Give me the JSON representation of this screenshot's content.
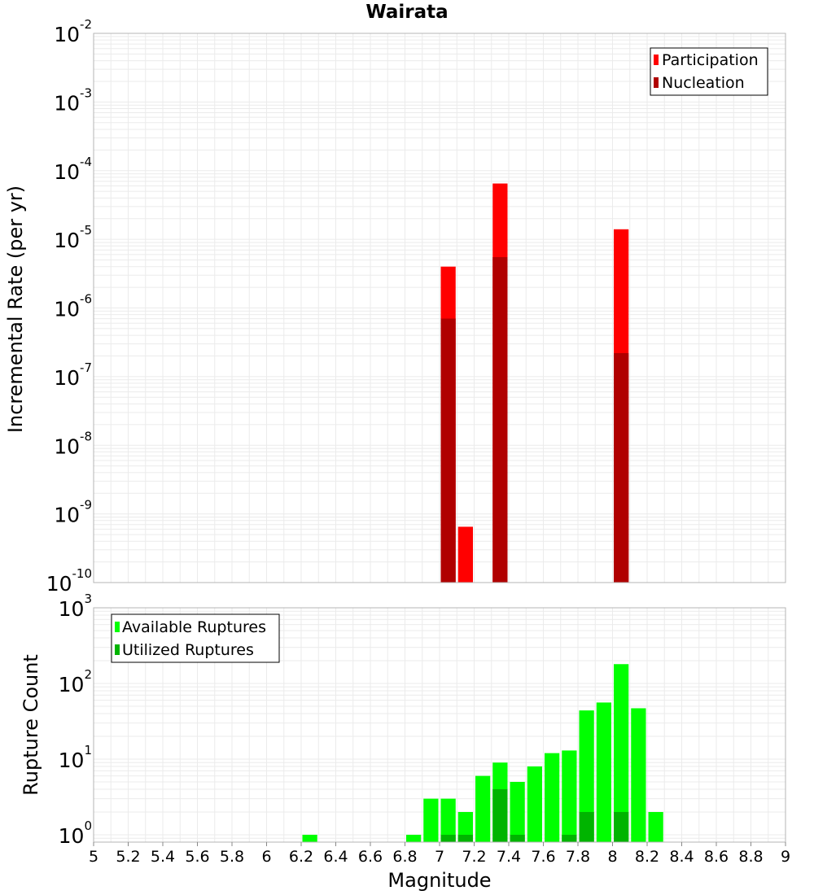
{
  "title": "Wairata",
  "xlabel": "Magnitude",
  "x_ticks": [
    "5",
    "5.2",
    "5.4",
    "5.6",
    "5.8",
    "6",
    "6.2",
    "6.4",
    "6.6",
    "6.8",
    "7",
    "7.2",
    "7.4",
    "7.6",
    "7.8",
    "8",
    "8.2",
    "8.4",
    "8.6",
    "8.8",
    "9"
  ],
  "colors": {
    "participation": "#ff0000",
    "nucleation": "#b00000",
    "available": "#00ff00",
    "utilized": "#00b400",
    "grid": "#ebebeb",
    "frame": "#b4b4b4"
  },
  "chart_data": [
    {
      "type": "bar",
      "title": "Wairata",
      "xlabel": "Magnitude",
      "ylabel": "Incremental Rate (per yr)",
      "xlim": [
        5,
        9
      ],
      "ylim": [
        1e-10,
        0.01
      ],
      "yscale": "log",
      "grid": true,
      "legend_position": "top-right",
      "y_ticks": [
        {
          "base": "10",
          "exp": "-10"
        },
        {
          "base": "10",
          "exp": "-9"
        },
        {
          "base": "10",
          "exp": "-8"
        },
        {
          "base": "10",
          "exp": "-7"
        },
        {
          "base": "10",
          "exp": "-6"
        },
        {
          "base": "10",
          "exp": "-5"
        },
        {
          "base": "10",
          "exp": "-4"
        },
        {
          "base": "10",
          "exp": "-3"
        },
        {
          "base": "10",
          "exp": "-2"
        }
      ],
      "series": [
        {
          "name": "Participation",
          "color": "#ff0000",
          "x": [
            7.05,
            7.15,
            7.35,
            8.05
          ],
          "values": [
            4e-06,
            6.5e-10,
            6.5e-05,
            1.4e-05
          ]
        },
        {
          "name": "Nucleation",
          "color": "#b00000",
          "x": [
            7.05,
            7.35,
            8.05
          ],
          "values": [
            7e-07,
            5.5e-06,
            2.2e-07
          ]
        }
      ]
    },
    {
      "type": "bar",
      "xlabel": "Magnitude",
      "ylabel": "Rupture Count",
      "xlim": [
        5,
        9
      ],
      "ylim": [
        0.8,
        1000
      ],
      "yscale": "log",
      "grid": true,
      "legend_position": "top-left",
      "y_ticks": [
        {
          "value": 1,
          "base": "10",
          "exp": "0"
        },
        {
          "value": 10,
          "base": "10",
          "exp": "1"
        },
        {
          "value": 100,
          "base": "10",
          "exp": "2"
        },
        {
          "value": 1000,
          "base": "10",
          "exp": "3"
        }
      ],
      "series": [
        {
          "name": "Available Ruptures",
          "color": "#00ff00",
          "x": [
            6.25,
            6.85,
            6.95,
            7.05,
            7.15,
            7.25,
            7.35,
            7.45,
            7.55,
            7.65,
            7.75,
            7.85,
            7.95,
            8.05,
            8.15,
            8.25
          ],
          "values": [
            1,
            1,
            3,
            3,
            2,
            6,
            9,
            5,
            8,
            12,
            13,
            44,
            56,
            180,
            47,
            2
          ]
        },
        {
          "name": "Utilized Ruptures",
          "color": "#00b400",
          "x": [
            7.05,
            7.15,
            7.35,
            7.45,
            7.75,
            7.85,
            8.05
          ],
          "values": [
            1,
            1,
            4,
            1,
            1,
            2,
            2
          ]
        }
      ]
    }
  ]
}
